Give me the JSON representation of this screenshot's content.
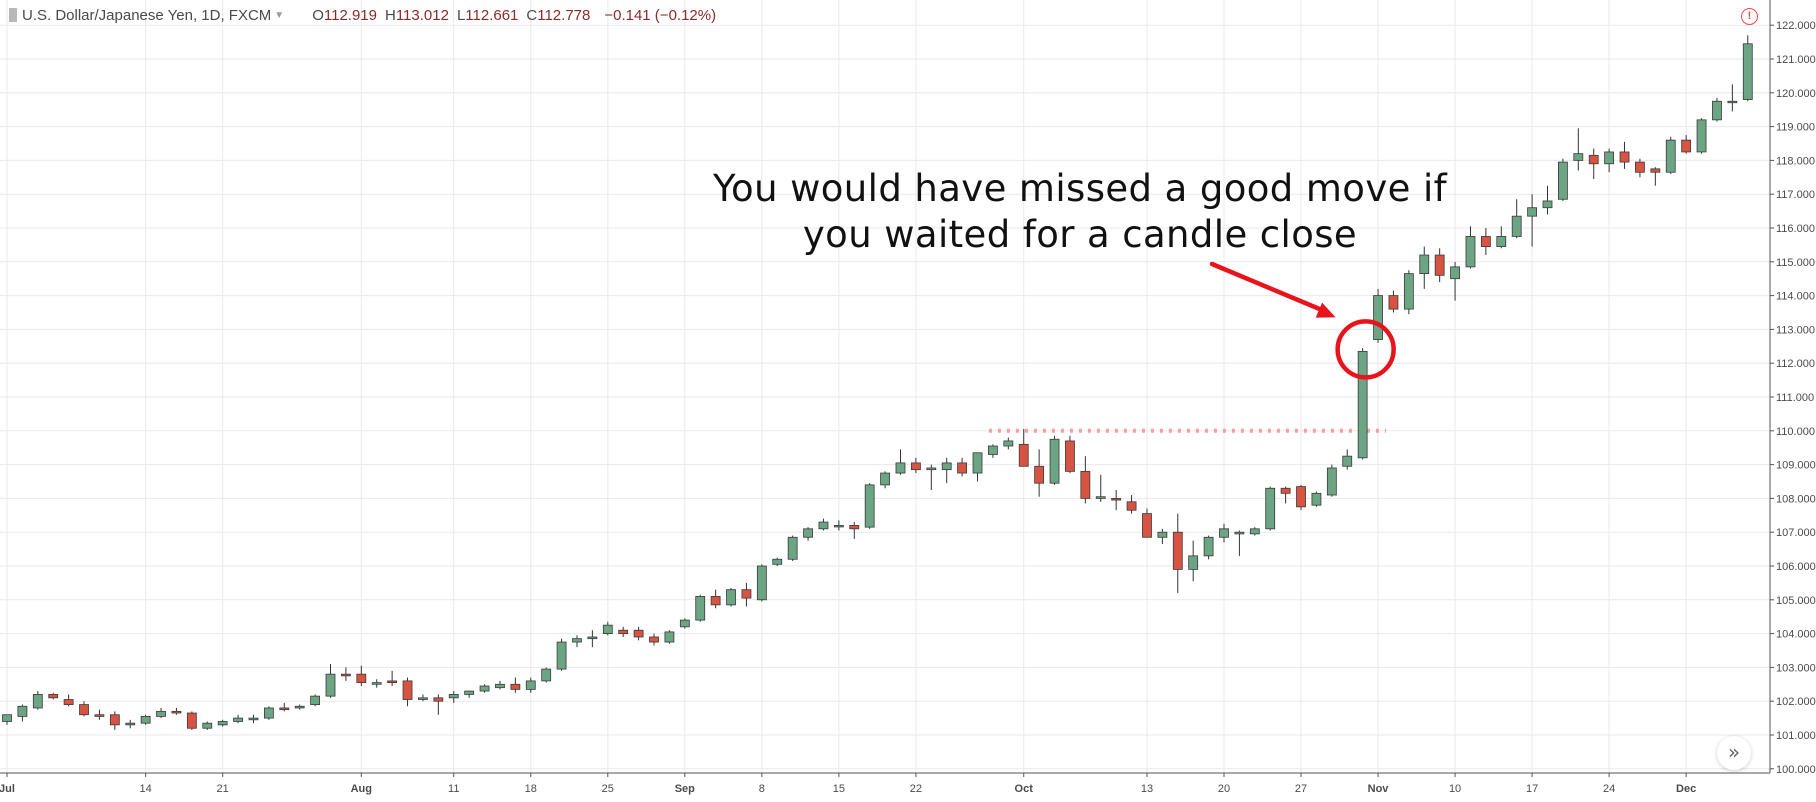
{
  "header": {
    "symbol": "U.S. Dollar/Japanese Yen, 1D, FXCM",
    "ohlc": [
      {
        "k": "O",
        "v": "112.919"
      },
      {
        "k": "H",
        "v": "113.012"
      },
      {
        "k": "L",
        "v": "112.661"
      },
      {
        "k": "C",
        "v": "112.778"
      }
    ],
    "change": "−0.141 (−0.12%)"
  },
  "annotation": {
    "text": "You would have missed a good move if\nyou waited for a candle close",
    "color": "#e8141c"
  },
  "colors": {
    "up": "#6ba583",
    "down": "#d75442",
    "wick": "#333333",
    "grid": "#e9e9ea",
    "resistance": "#f4a0a0"
  },
  "chart_data": {
    "type": "candlestick",
    "title": "U.S. Dollar/Japanese Yen, 1D, FXCM",
    "ylim": [
      100,
      122
    ],
    "y_ticks": [
      "100.000",
      "101.000",
      "102.000",
      "103.000",
      "104.000",
      "105.000",
      "106.000",
      "107.000",
      "108.000",
      "109.000",
      "110.000",
      "111.000",
      "112.000",
      "113.000",
      "114.000",
      "115.000",
      "116.000",
      "117.000",
      "118.000",
      "119.000",
      "120.000",
      "121.000",
      "122.000"
    ],
    "x_ticks": [
      {
        "label": "Jul",
        "index": 0
      },
      {
        "label": "14",
        "index": 9
      },
      {
        "label": "21",
        "index": 14
      },
      {
        "label": "Aug",
        "index": 23
      },
      {
        "label": "11",
        "index": 29
      },
      {
        "label": "18",
        "index": 34
      },
      {
        "label": "25",
        "index": 39
      },
      {
        "label": "Sep",
        "index": 44
      },
      {
        "label": "8",
        "index": 49
      },
      {
        "label": "15",
        "index": 54
      },
      {
        "label": "22",
        "index": 59
      },
      {
        "label": "Oct",
        "index": 66
      },
      {
        "label": "13",
        "index": 74
      },
      {
        "label": "20",
        "index": 79
      },
      {
        "label": "27",
        "index": 84
      },
      {
        "label": "Nov",
        "index": 89
      },
      {
        "label": "10",
        "index": 94
      },
      {
        "label": "17",
        "index": 99
      },
      {
        "label": "24",
        "index": 104
      },
      {
        "label": "Dec",
        "index": 109
      }
    ],
    "resistance": {
      "price": 110.0,
      "from_index": 64,
      "to_index": 89
    },
    "circled_index": 88,
    "candles": [
      {
        "o": 101.4,
        "h": 101.6,
        "l": 101.3,
        "c": 101.6
      },
      {
        "o": 101.55,
        "h": 101.9,
        "l": 101.4,
        "c": 101.85
      },
      {
        "o": 101.8,
        "h": 102.3,
        "l": 101.75,
        "c": 102.2
      },
      {
        "o": 102.2,
        "h": 102.25,
        "l": 102.05,
        "c": 102.1
      },
      {
        "o": 102.05,
        "h": 102.2,
        "l": 101.85,
        "c": 101.9
      },
      {
        "o": 101.9,
        "h": 102.0,
        "l": 101.55,
        "c": 101.6
      },
      {
        "o": 101.6,
        "h": 101.75,
        "l": 101.45,
        "c": 101.55
      },
      {
        "o": 101.6,
        "h": 101.7,
        "l": 101.15,
        "c": 101.3
      },
      {
        "o": 101.3,
        "h": 101.45,
        "l": 101.2,
        "c": 101.35
      },
      {
        "o": 101.35,
        "h": 101.6,
        "l": 101.3,
        "c": 101.55
      },
      {
        "o": 101.55,
        "h": 101.8,
        "l": 101.5,
        "c": 101.7
      },
      {
        "o": 101.7,
        "h": 101.8,
        "l": 101.6,
        "c": 101.65
      },
      {
        "o": 101.65,
        "h": 101.7,
        "l": 101.15,
        "c": 101.2
      },
      {
        "o": 101.2,
        "h": 101.4,
        "l": 101.15,
        "c": 101.35
      },
      {
        "o": 101.3,
        "h": 101.45,
        "l": 101.25,
        "c": 101.4
      },
      {
        "o": 101.4,
        "h": 101.6,
        "l": 101.35,
        "c": 101.5
      },
      {
        "o": 101.45,
        "h": 101.6,
        "l": 101.35,
        "c": 101.5
      },
      {
        "o": 101.5,
        "h": 101.85,
        "l": 101.45,
        "c": 101.8
      },
      {
        "o": 101.8,
        "h": 101.95,
        "l": 101.7,
        "c": 101.75
      },
      {
        "o": 101.8,
        "h": 101.9,
        "l": 101.75,
        "c": 101.85
      },
      {
        "o": 101.9,
        "h": 102.2,
        "l": 101.85,
        "c": 102.15
      },
      {
        "o": 102.15,
        "h": 103.1,
        "l": 102.1,
        "c": 102.8
      },
      {
        "o": 102.8,
        "h": 103.0,
        "l": 102.6,
        "c": 102.75
      },
      {
        "o": 102.8,
        "h": 103.05,
        "l": 102.45,
        "c": 102.55
      },
      {
        "o": 102.5,
        "h": 102.65,
        "l": 102.4,
        "c": 102.55
      },
      {
        "o": 102.6,
        "h": 102.9,
        "l": 102.45,
        "c": 102.55
      },
      {
        "o": 102.6,
        "h": 102.7,
        "l": 101.85,
        "c": 102.05
      },
      {
        "o": 102.05,
        "h": 102.2,
        "l": 102.0,
        "c": 102.1
      },
      {
        "o": 102.1,
        "h": 102.2,
        "l": 101.6,
        "c": 102.0
      },
      {
        "o": 102.1,
        "h": 102.3,
        "l": 101.95,
        "c": 102.2
      },
      {
        "o": 102.2,
        "h": 102.3,
        "l": 102.1,
        "c": 102.3
      },
      {
        "o": 102.3,
        "h": 102.5,
        "l": 102.25,
        "c": 102.45
      },
      {
        "o": 102.4,
        "h": 102.6,
        "l": 102.35,
        "c": 102.5
      },
      {
        "o": 102.5,
        "h": 102.7,
        "l": 102.25,
        "c": 102.35
      },
      {
        "o": 102.35,
        "h": 102.7,
        "l": 102.25,
        "c": 102.6
      },
      {
        "o": 102.6,
        "h": 103.0,
        "l": 102.55,
        "c": 102.95
      },
      {
        "o": 102.95,
        "h": 103.85,
        "l": 102.9,
        "c": 103.75
      },
      {
        "o": 103.75,
        "h": 103.95,
        "l": 103.6,
        "c": 103.85
      },
      {
        "o": 103.85,
        "h": 104.1,
        "l": 103.6,
        "c": 103.9
      },
      {
        "o": 104.0,
        "h": 104.35,
        "l": 103.95,
        "c": 104.25
      },
      {
        "o": 104.1,
        "h": 104.2,
        "l": 103.9,
        "c": 104.0
      },
      {
        "o": 104.1,
        "h": 104.2,
        "l": 103.8,
        "c": 103.9
      },
      {
        "o": 103.9,
        "h": 104.0,
        "l": 103.65,
        "c": 103.75
      },
      {
        "o": 103.75,
        "h": 104.1,
        "l": 103.7,
        "c": 104.05
      },
      {
        "o": 104.2,
        "h": 104.45,
        "l": 104.15,
        "c": 104.4
      },
      {
        "o": 104.4,
        "h": 105.15,
        "l": 104.35,
        "c": 105.1
      },
      {
        "o": 105.1,
        "h": 105.3,
        "l": 104.75,
        "c": 104.85
      },
      {
        "o": 104.85,
        "h": 105.35,
        "l": 104.8,
        "c": 105.3
      },
      {
        "o": 105.3,
        "h": 105.5,
        "l": 104.8,
        "c": 105.05
      },
      {
        "o": 105.0,
        "h": 106.05,
        "l": 104.95,
        "c": 106.0
      },
      {
        "o": 106.05,
        "h": 106.25,
        "l": 106.0,
        "c": 106.2
      },
      {
        "o": 106.2,
        "h": 106.9,
        "l": 106.15,
        "c": 106.85
      },
      {
        "o": 106.85,
        "h": 107.15,
        "l": 106.75,
        "c": 107.1
      },
      {
        "o": 107.1,
        "h": 107.4,
        "l": 107.05,
        "c": 107.3
      },
      {
        "o": 107.2,
        "h": 107.35,
        "l": 107.05,
        "c": 107.2
      },
      {
        "o": 107.2,
        "h": 107.3,
        "l": 106.8,
        "c": 107.1
      },
      {
        "o": 107.15,
        "h": 108.45,
        "l": 107.1,
        "c": 108.4
      },
      {
        "o": 108.4,
        "h": 108.8,
        "l": 108.3,
        "c": 108.75
      },
      {
        "o": 108.75,
        "h": 109.45,
        "l": 108.7,
        "c": 109.05
      },
      {
        "o": 109.05,
        "h": 109.2,
        "l": 108.75,
        "c": 108.85
      },
      {
        "o": 108.85,
        "h": 109.0,
        "l": 108.25,
        "c": 108.9
      },
      {
        "o": 108.85,
        "h": 109.2,
        "l": 108.45,
        "c": 109.05
      },
      {
        "o": 109.05,
        "h": 109.2,
        "l": 108.65,
        "c": 108.75
      },
      {
        "o": 108.75,
        "h": 109.35,
        "l": 108.5,
        "c": 109.35
      },
      {
        "o": 109.3,
        "h": 109.6,
        "l": 109.2,
        "c": 109.55
      },
      {
        "o": 109.55,
        "h": 109.8,
        "l": 109.45,
        "c": 109.7
      },
      {
        "o": 109.6,
        "h": 110.05,
        "l": 108.95,
        "c": 108.95
      },
      {
        "o": 108.95,
        "h": 109.45,
        "l": 108.05,
        "c": 108.45
      },
      {
        "o": 108.45,
        "h": 109.85,
        "l": 108.4,
        "c": 109.75
      },
      {
        "o": 109.7,
        "h": 109.85,
        "l": 108.75,
        "c": 108.8
      },
      {
        "o": 108.8,
        "h": 109.25,
        "l": 107.85,
        "c": 108.0
      },
      {
        "o": 108.0,
        "h": 108.7,
        "l": 107.9,
        "c": 108.05
      },
      {
        "o": 108.0,
        "h": 108.25,
        "l": 107.65,
        "c": 107.95
      },
      {
        "o": 107.9,
        "h": 108.1,
        "l": 107.55,
        "c": 107.65
      },
      {
        "o": 107.55,
        "h": 107.7,
        "l": 106.85,
        "c": 106.85
      },
      {
        "o": 106.85,
        "h": 107.1,
        "l": 106.65,
        "c": 107.0
      },
      {
        "o": 107.0,
        "h": 107.55,
        "l": 105.2,
        "c": 105.9
      },
      {
        "o": 105.9,
        "h": 106.75,
        "l": 105.55,
        "c": 106.3
      },
      {
        "o": 106.3,
        "h": 106.9,
        "l": 106.2,
        "c": 106.85
      },
      {
        "o": 106.85,
        "h": 107.25,
        "l": 106.7,
        "c": 107.1
      },
      {
        "o": 106.95,
        "h": 107.05,
        "l": 106.3,
        "c": 107.0
      },
      {
        "o": 106.95,
        "h": 107.15,
        "l": 106.9,
        "c": 107.1
      },
      {
        "o": 107.1,
        "h": 108.35,
        "l": 107.05,
        "c": 108.3
      },
      {
        "o": 108.3,
        "h": 108.35,
        "l": 107.85,
        "c": 108.15
      },
      {
        "o": 108.35,
        "h": 108.4,
        "l": 107.65,
        "c": 107.75
      },
      {
        "o": 107.8,
        "h": 108.2,
        "l": 107.75,
        "c": 108.15
      },
      {
        "o": 108.1,
        "h": 109.0,
        "l": 108.05,
        "c": 108.9
      },
      {
        "o": 108.95,
        "h": 109.45,
        "l": 108.85,
        "c": 109.25
      },
      {
        "o": 109.2,
        "h": 112.45,
        "l": 109.15,
        "c": 112.35
      },
      {
        "o": 112.7,
        "h": 114.2,
        "l": 112.6,
        "c": 114.0
      },
      {
        "o": 114.0,
        "h": 114.15,
        "l": 113.5,
        "c": 113.6
      },
      {
        "o": 113.6,
        "h": 114.75,
        "l": 113.45,
        "c": 114.65
      },
      {
        "o": 114.65,
        "h": 115.45,
        "l": 114.2,
        "c": 115.2
      },
      {
        "o": 115.2,
        "h": 115.4,
        "l": 114.4,
        "c": 114.6
      },
      {
        "o": 114.5,
        "h": 115.0,
        "l": 113.85,
        "c": 114.85
      },
      {
        "o": 114.85,
        "h": 116.05,
        "l": 114.8,
        "c": 115.75
      },
      {
        "o": 115.75,
        "h": 116.0,
        "l": 115.2,
        "c": 115.45
      },
      {
        "o": 115.45,
        "h": 116.05,
        "l": 115.4,
        "c": 115.75
      },
      {
        "o": 115.75,
        "h": 116.85,
        "l": 115.7,
        "c": 116.35
      },
      {
        "o": 116.35,
        "h": 117.0,
        "l": 115.45,
        "c": 116.6
      },
      {
        "o": 116.6,
        "h": 117.25,
        "l": 116.4,
        "c": 116.8
      },
      {
        "o": 116.85,
        "h": 118.05,
        "l": 116.8,
        "c": 117.95
      },
      {
        "o": 118.0,
        "h": 118.95,
        "l": 117.7,
        "c": 118.2
      },
      {
        "o": 118.15,
        "h": 118.35,
        "l": 117.45,
        "c": 117.9
      },
      {
        "o": 117.9,
        "h": 118.35,
        "l": 117.65,
        "c": 118.25
      },
      {
        "o": 118.25,
        "h": 118.55,
        "l": 117.75,
        "c": 117.95
      },
      {
        "o": 117.95,
        "h": 118.05,
        "l": 117.5,
        "c": 117.65
      },
      {
        "o": 117.75,
        "h": 117.8,
        "l": 117.25,
        "c": 117.65
      },
      {
        "o": 117.65,
        "h": 118.7,
        "l": 117.6,
        "c": 118.6
      },
      {
        "o": 118.6,
        "h": 118.75,
        "l": 118.2,
        "c": 118.25
      },
      {
        "o": 118.25,
        "h": 119.25,
        "l": 118.2,
        "c": 119.2
      },
      {
        "o": 119.2,
        "h": 119.85,
        "l": 119.15,
        "c": 119.75
      },
      {
        "o": 119.75,
        "h": 120.25,
        "l": 119.45,
        "c": 119.75
      },
      {
        "o": 119.8,
        "h": 121.7,
        "l": 119.75,
        "c": 121.45
      }
    ]
  }
}
